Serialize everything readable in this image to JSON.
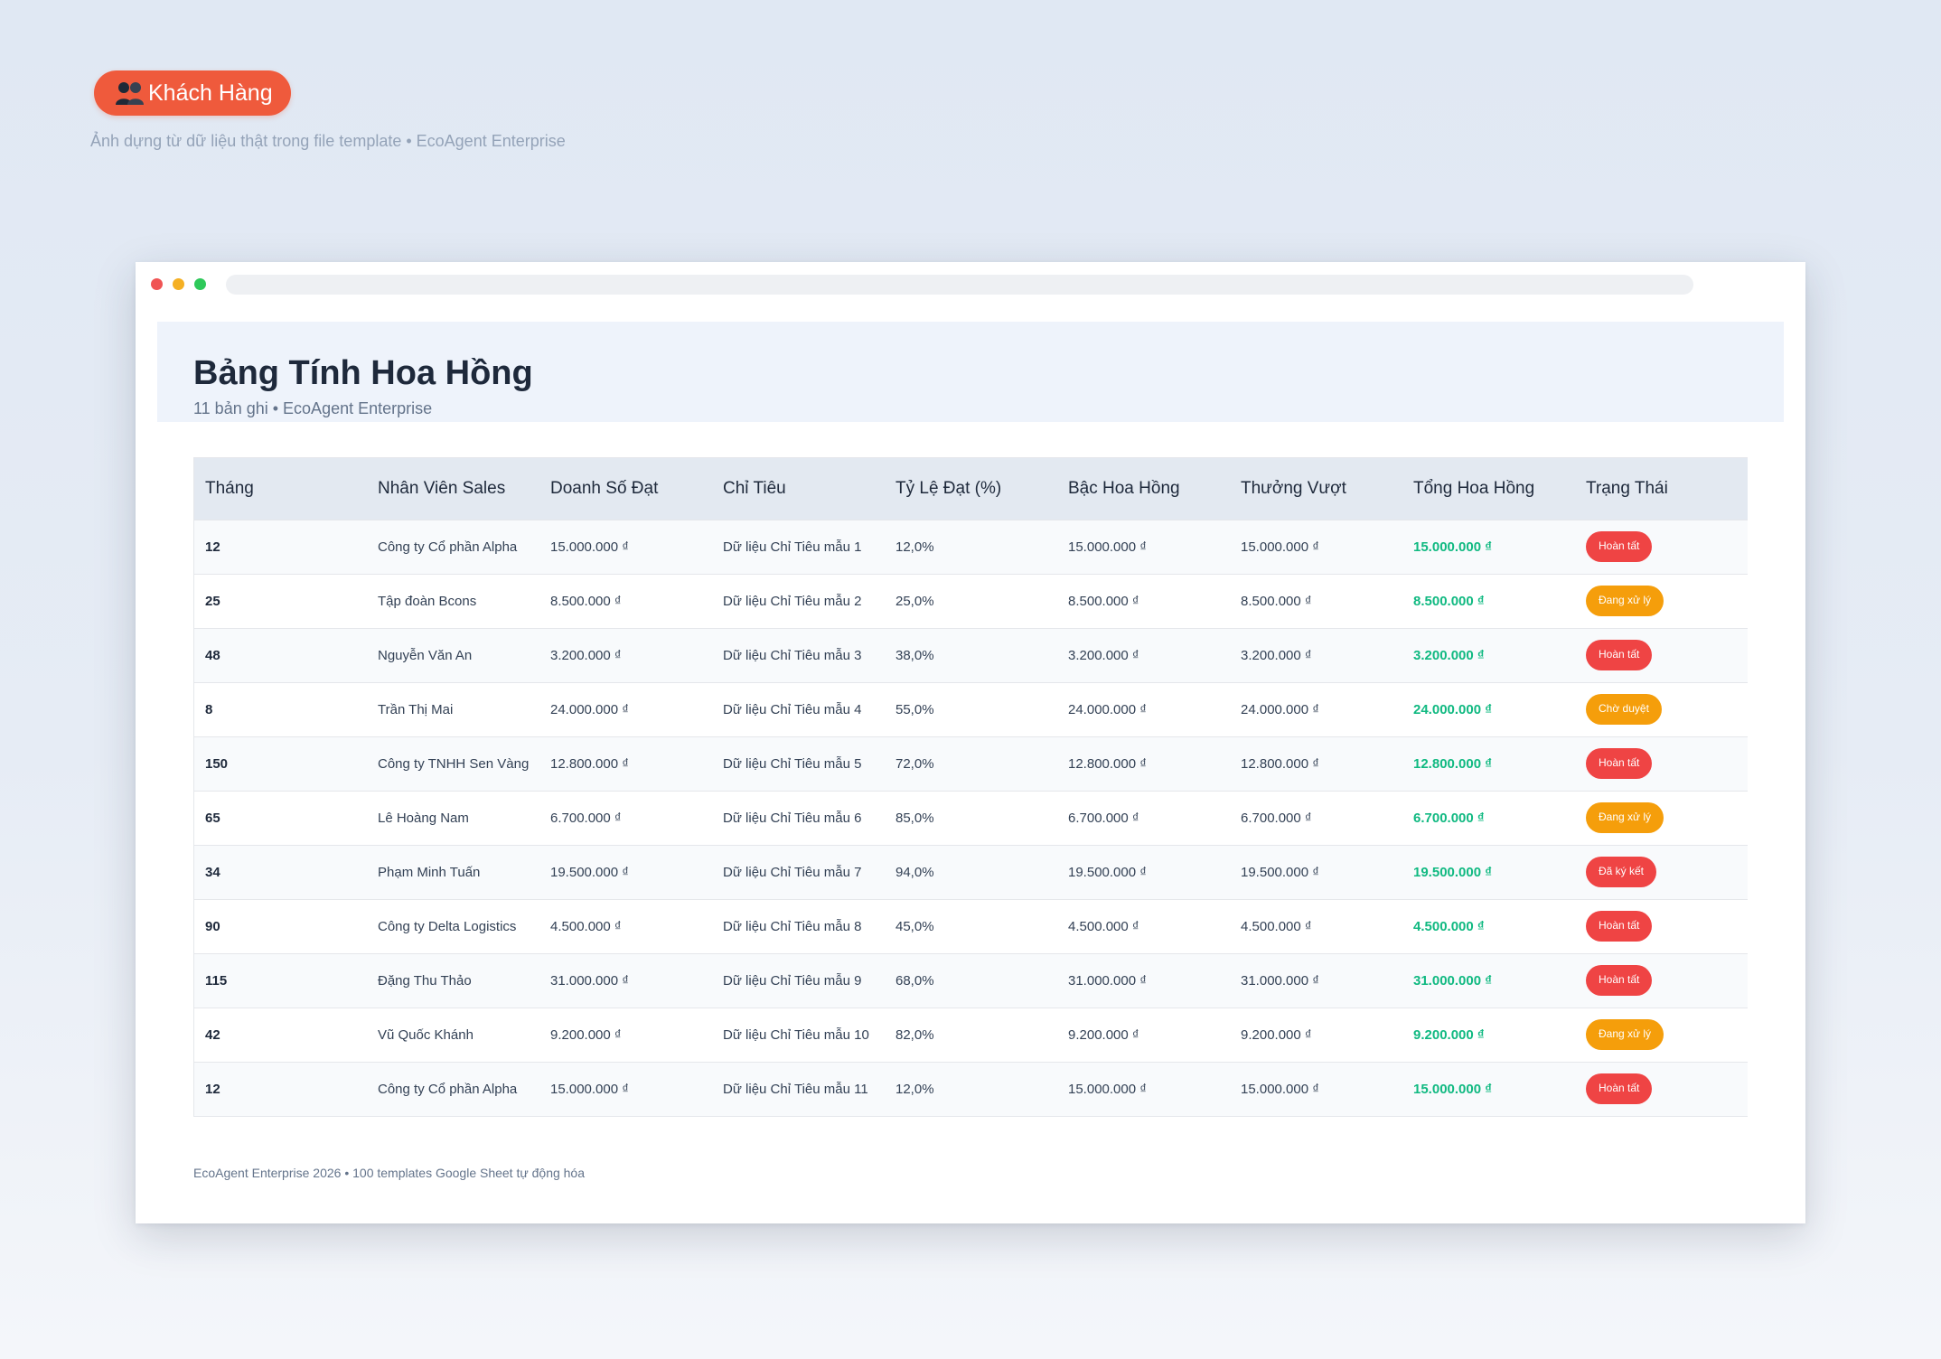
{
  "badge": {
    "label": "Khách Hàng",
    "icon": "users-icon"
  },
  "caption": "Ảnh dựng từ dữ liệu thật trong file template • EcoAgent Enterprise",
  "sheet": {
    "title": "Bảng Tính Hoa Hồng",
    "subtitle": "11 bản ghi • EcoAgent Enterprise",
    "footer": "EcoAgent Enterprise 2026 • 100 templates Google Sheet tự động hóa"
  },
  "colors": {
    "accent": "#ef5a3c",
    "status_red": "#ef4444",
    "status_orange": "#f59e0b",
    "total_green": "#10b981"
  },
  "table": {
    "headers": [
      "Tháng",
      "Nhân Viên Sales",
      "Doanh Số Đạt",
      "Chỉ Tiêu",
      "Tỷ Lệ Đạt (%)",
      "Bậc Hoa Hồng",
      "Thưởng Vượt",
      "Tổng Hoa Hồng",
      "Trạng Thái"
    ],
    "rows": [
      [
        "12",
        "Công ty Cổ phần Alpha",
        "15.000.000 ₫",
        "Dữ liệu Chỉ Tiêu mẫu 1",
        "12,0%",
        "15.000.000 ₫",
        "15.000.000 ₫",
        "15.000.000 ₫",
        "Hoàn tất"
      ],
      [
        "25",
        "Tập đoàn Bcons",
        "8.500.000 ₫",
        "Dữ liệu Chỉ Tiêu mẫu 2",
        "25,0%",
        "8.500.000 ₫",
        "8.500.000 ₫",
        "8.500.000 ₫",
        "Đang xử lý"
      ],
      [
        "48",
        "Nguyễn Văn An",
        "3.200.000 ₫",
        "Dữ liệu Chỉ Tiêu mẫu 3",
        "38,0%",
        "3.200.000 ₫",
        "3.200.000 ₫",
        "3.200.000 ₫",
        "Hoàn tất"
      ],
      [
        "8",
        "Trần Thị Mai",
        "24.000.000 ₫",
        "Dữ liệu Chỉ Tiêu mẫu 4",
        "55,0%",
        "24.000.000 ₫",
        "24.000.000 ₫",
        "24.000.000 ₫",
        "Chờ duyệt"
      ],
      [
        "150",
        "Công ty TNHH Sen Vàng",
        "12.800.000 ₫",
        "Dữ liệu Chỉ Tiêu mẫu 5",
        "72,0%",
        "12.800.000 ₫",
        "12.800.000 ₫",
        "12.800.000 ₫",
        "Hoàn tất"
      ],
      [
        "65",
        "Lê Hoàng Nam",
        "6.700.000 ₫",
        "Dữ liệu Chỉ Tiêu mẫu 6",
        "85,0%",
        "6.700.000 ₫",
        "6.700.000 ₫",
        "6.700.000 ₫",
        "Đang xử lý"
      ],
      [
        "34",
        "Phạm Minh Tuấn",
        "19.500.000 ₫",
        "Dữ liệu Chỉ Tiêu mẫu 7",
        "94,0%",
        "19.500.000 ₫",
        "19.500.000 ₫",
        "19.500.000 ₫",
        "Đã ký kết"
      ],
      [
        "90",
        "Công ty Delta Logistics",
        "4.500.000 ₫",
        "Dữ liệu Chỉ Tiêu mẫu 8",
        "45,0%",
        "4.500.000 ₫",
        "4.500.000 ₫",
        "4.500.000 ₫",
        "Hoàn tất"
      ],
      [
        "115",
        "Đặng Thu Thảo",
        "31.000.000 ₫",
        "Dữ liệu Chỉ Tiêu mẫu 9",
        "68,0%",
        "31.000.000 ₫",
        "31.000.000 ₫",
        "31.000.000 ₫",
        "Hoàn tất"
      ],
      [
        "42",
        "Vũ Quốc Khánh",
        "9.200.000 ₫",
        "Dữ liệu Chỉ Tiêu mẫu 10",
        "82,0%",
        "9.200.000 ₫",
        "9.200.000 ₫",
        "9.200.000 ₫",
        "Đang xử lý"
      ],
      [
        "12",
        "Công ty Cổ phần Alpha",
        "15.000.000 ₫",
        "Dữ liệu Chỉ Tiêu mẫu 11",
        "12,0%",
        "15.000.000 ₫",
        "15.000.000 ₫",
        "15.000.000 ₫",
        "Hoàn tất"
      ]
    ],
    "status_colors": {
      "Hoàn tất": "red",
      "Đang xử lý": "orange",
      "Chờ duyệt": "orange",
      "Đã ký kết": "red"
    }
  }
}
